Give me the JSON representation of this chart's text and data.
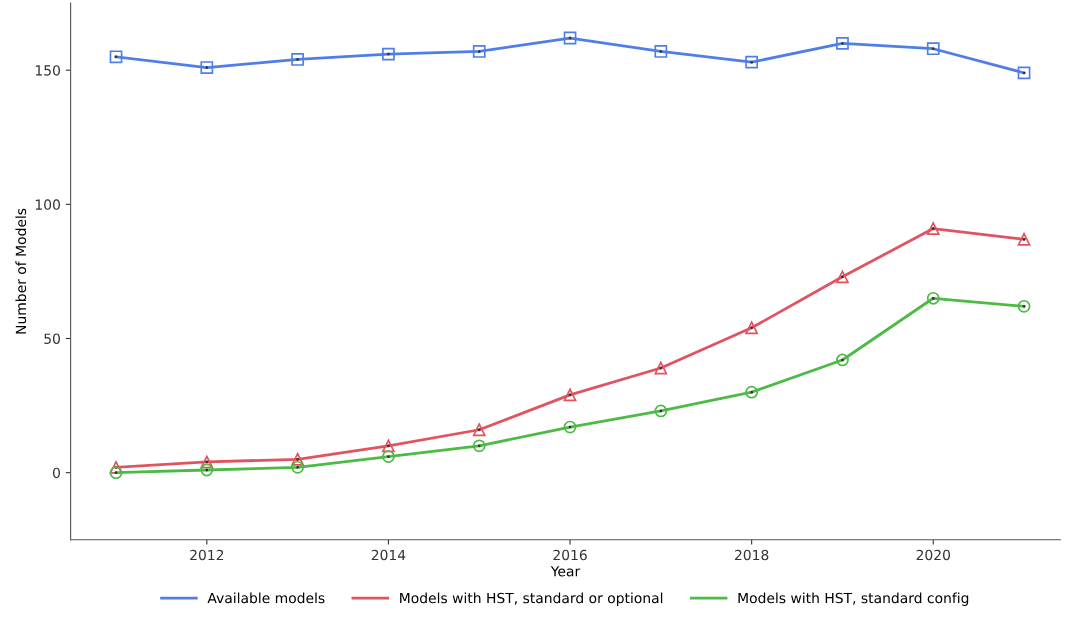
{
  "chart_data": {
    "type": "line",
    "xlabel": "Year",
    "ylabel": "Number of Models",
    "x": [
      2011,
      2012,
      2013,
      2014,
      2015,
      2016,
      2017,
      2018,
      2019,
      2020,
      2021
    ],
    "series": [
      {
        "name": "Available models",
        "color": "#4f7fe6",
        "marker": "square",
        "values": [
          155,
          151,
          154,
          156,
          157,
          162,
          157,
          153,
          160,
          158,
          149
        ]
      },
      {
        "name": "Models with HST, standard or optional",
        "color": "#e0535f",
        "marker": "triangle",
        "values": [
          2,
          4,
          5,
          10,
          16,
          29,
          39,
          54,
          73,
          91,
          87
        ]
      },
      {
        "name": "Models with HST, standard config",
        "color": "#4cba45",
        "marker": "circle",
        "values": [
          0,
          1,
          2,
          6,
          10,
          17,
          23,
          30,
          42,
          65,
          62
        ]
      }
    ],
    "xlim": [
      2010.5,
      2021.4
    ],
    "ylim": [
      -25,
      175
    ],
    "xticks": [
      2012,
      2014,
      2016,
      2018,
      2020
    ],
    "yticks": [
      0,
      50,
      100,
      150
    ],
    "grid": false,
    "legend": "bottom",
    "line_style": "solid"
  }
}
